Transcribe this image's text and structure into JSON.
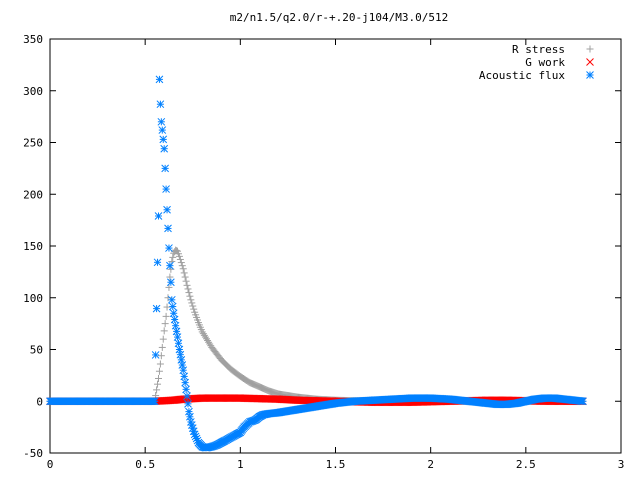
{
  "chart_data": {
    "type": "scatter",
    "title": "m2/n1.5/q2.0/r-+.20-j104/M3.0/512",
    "xlabel": "",
    "ylabel": "",
    "xlim": [
      0,
      3
    ],
    "ylim": [
      -50,
      350
    ],
    "xticks": [
      "0",
      "0.5",
      "1",
      "1.5",
      "2",
      "2.5",
      "3"
    ],
    "yticks": [
      "-50",
      "0",
      "50",
      "100",
      "150",
      "200",
      "250",
      "300",
      "350"
    ],
    "grid": false,
    "legend_position": "top-right",
    "series": [
      {
        "name": "R stress",
        "marker": "plus",
        "color": "#a0a0a0",
        "x": [
          0.0,
          0.2,
          0.4,
          0.55,
          0.57,
          0.58,
          0.59,
          0.6,
          0.61,
          0.62,
          0.63,
          0.64,
          0.65,
          0.66,
          0.67,
          0.68,
          0.7,
          0.72,
          0.74,
          0.76,
          0.78,
          0.8,
          0.85,
          0.9,
          0.95,
          1.0,
          1.05,
          1.1,
          1.15,
          1.2,
          1.3,
          1.4,
          1.5,
          1.6,
          1.8,
          2.0,
          2.2,
          2.4,
          2.6,
          2.8
        ],
        "y": [
          0,
          0,
          0,
          0,
          22,
          36,
          52,
          68,
          82,
          100,
          120,
          135,
          143,
          146,
          145,
          140,
          128,
          112,
          98,
          86,
          76,
          67,
          52,
          40,
          31,
          24,
          18,
          14,
          10,
          7,
          4,
          2,
          1,
          0.5,
          0.3,
          0.1,
          0,
          0,
          0,
          0
        ]
      },
      {
        "name": "G work",
        "marker": "cross",
        "color": "#ff0000",
        "x": [
          0.0,
          0.2,
          0.4,
          0.55,
          0.6,
          0.65,
          0.7,
          0.75,
          0.8,
          0.9,
          1.0,
          1.1,
          1.2,
          1.3,
          1.4,
          1.5,
          1.6,
          1.7,
          1.8,
          1.9,
          2.0,
          2.1,
          2.2,
          2.3,
          2.4,
          2.5,
          2.6,
          2.7,
          2.8
        ],
        "y": [
          0,
          0,
          0,
          0,
          0.5,
          1,
          2,
          2.5,
          3,
          3,
          3,
          2.5,
          2,
          1,
          0.5,
          0,
          -0.5,
          -1,
          -1,
          -1,
          -0.5,
          0,
          0.5,
          1,
          1,
          0.5,
          0,
          0,
          0
        ]
      },
      {
        "name": "Acoustic flux",
        "marker": "star",
        "color": "#0080ff",
        "x": [
          0.0,
          0.1,
          0.2,
          0.3,
          0.4,
          0.5,
          0.55,
          0.57,
          0.575,
          0.58,
          0.585,
          0.59,
          0.6,
          0.605,
          0.61,
          0.615,
          0.62,
          0.625,
          0.63,
          0.635,
          0.64,
          0.65,
          0.66,
          0.67,
          0.68,
          0.69,
          0.7,
          0.71,
          0.72,
          0.73,
          0.74,
          0.76,
          0.78,
          0.8,
          0.82,
          0.85,
          0.88,
          0.9,
          0.92,
          0.95,
          0.98,
          1.0,
          1.02,
          1.05,
          1.08,
          1.1,
          1.12,
          1.15,
          1.2,
          1.3,
          1.4,
          1.5,
          1.6,
          1.7,
          1.8,
          1.9,
          2.0,
          2.1,
          2.2,
          2.3,
          2.35,
          2.4,
          2.45,
          2.5,
          2.55,
          2.6,
          2.65,
          2.7,
          2.75,
          2.8
        ],
        "y": [
          0,
          0,
          0,
          0,
          0,
          0,
          0,
          179,
          311,
          287,
          270,
          262,
          244,
          225,
          205,
          185,
          167,
          148,
          131,
          115,
          98,
          85,
          73,
          62,
          50,
          40,
          30,
          18,
          5,
          -10,
          -20,
          -32,
          -40,
          -44,
          -45,
          -44,
          -42,
          -40,
          -38,
          -35,
          -32,
          -30,
          -25,
          -20,
          -18,
          -15,
          -13,
          -12,
          -11,
          -8,
          -5,
          -2,
          0,
          1,
          2,
          3,
          3,
          2,
          0,
          -2,
          -3,
          -3,
          -2,
          0,
          2,
          3,
          3,
          2,
          1,
          0
        ]
      }
    ]
  }
}
